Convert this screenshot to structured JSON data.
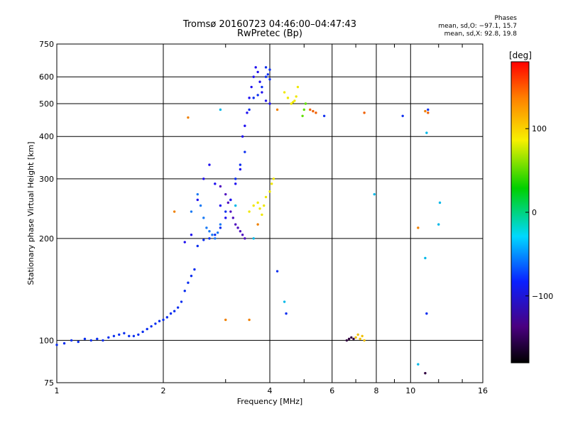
{
  "title_line1": "Tromsø 20160723 04:46:00–04:47:43",
  "title_line2": "RwPretec (Bp)",
  "phase_summary": {
    "heading": "Phases",
    "o_mode": "mean, sd,O: −97.1, 15.7",
    "x_mode": "mean, sd,X:  92.8, 19.8"
  },
  "colorbar": {
    "unit_label": "[deg]",
    "tick_labels": [
      "100",
      "0",
      "−100"
    ],
    "tick_values": [
      100,
      0,
      -100
    ],
    "range": [
      -180,
      180
    ]
  },
  "chart_data": {
    "type": "scatter",
    "xlabel": "Frequency [MHz]",
    "ylabel": "Stationary phase Virtual Height [km]",
    "xscale": "log",
    "yscale": "log",
    "xlim": [
      1,
      16
    ],
    "ylim": [
      75,
      750
    ],
    "x_ticks": [
      1,
      2,
      4,
      6,
      8,
      10,
      16
    ],
    "x_tick_labels": [
      "1",
      "2",
      "4",
      "6",
      "8",
      "10",
      "16"
    ],
    "y_ticks": [
      75,
      100,
      200,
      300,
      400,
      500,
      600,
      750
    ],
    "y_tick_labels": [
      "75",
      "100",
      "200",
      "300",
      "400",
      "500",
      "600",
      "750"
    ],
    "grid": true,
    "series": [
      {
        "phase_deg": -105,
        "color": "#0a2ef0",
        "x": [
          1.0,
          1.05,
          1.1,
          1.15,
          1.2,
          1.25,
          1.3,
          1.35,
          1.4,
          1.45,
          1.5,
          1.55,
          1.6,
          1.65,
          1.7,
          1.75,
          1.8,
          1.85,
          1.9,
          1.95,
          2.0,
          2.05,
          2.1,
          2.15,
          2.2,
          2.25,
          2.3,
          2.35,
          2.4,
          2.45,
          2.5,
          2.6,
          2.7,
          2.8,
          2.9,
          3.0,
          3.1,
          3.2,
          3.3,
          3.4,
          3.5,
          3.6,
          3.7,
          3.8,
          3.9,
          4.0
        ],
        "y": [
          97,
          98,
          100,
          99,
          101,
          100,
          101,
          100,
          102,
          103,
          104,
          105,
          103,
          103,
          104,
          106,
          108,
          110,
          112,
          114,
          115,
          117,
          120,
          122,
          125,
          130,
          140,
          148,
          155,
          162,
          190,
          198,
          200,
          205,
          215,
          240,
          260,
          300,
          330,
          360,
          480,
          520,
          530,
          560,
          600,
          630
        ]
      },
      {
        "phase_deg": -115,
        "color": "#1f10f0",
        "x": [
          2.3,
          2.4,
          2.5,
          2.6,
          2.7,
          2.8,
          2.9,
          3.0,
          3.1,
          3.2,
          3.3,
          3.35,
          3.4,
          3.45,
          3.5,
          3.55,
          3.6,
          3.65,
          3.7,
          3.75,
          3.8,
          3.9,
          4.0
        ],
        "y": [
          195,
          205,
          260,
          300,
          330,
          290,
          250,
          230,
          260,
          290,
          320,
          400,
          430,
          470,
          520,
          560,
          600,
          640,
          620,
          580,
          540,
          510,
          500
        ]
      },
      {
        "phase_deg": -85,
        "color": "#1a7af5",
        "x": [
          2.4,
          2.5,
          2.55,
          2.6,
          2.65,
          2.7,
          2.75,
          2.8,
          2.85,
          2.9
        ],
        "y": [
          240,
          270,
          250,
          230,
          215,
          210,
          205,
          200,
          208,
          220
        ]
      },
      {
        "phase_deg": -125,
        "color": "#5010c0",
        "x": [
          2.9,
          3.0,
          3.05,
          3.1,
          3.15,
          3.2,
          3.25,
          3.3,
          3.35,
          3.4
        ],
        "y": [
          285,
          270,
          255,
          240,
          230,
          220,
          215,
          210,
          205,
          200
        ]
      },
      {
        "phase_deg": 115,
        "color": "#f0e800",
        "x": [
          3.5,
          3.6,
          3.7,
          3.75,
          3.8,
          3.85,
          3.9,
          4.0,
          4.05,
          4.1,
          4.4,
          4.5,
          4.6,
          4.65,
          4.7,
          4.75,
          4.8
        ],
        "y": [
          240,
          250,
          255,
          245,
          235,
          250,
          265,
          275,
          290,
          300,
          540,
          520,
          500,
          505,
          510,
          525,
          560
        ]
      },
      {
        "phase_deg": 30,
        "color": "#60e000",
        "x": [
          4.95,
          5.0,
          5.05
        ],
        "y": [
          460,
          480,
          500
        ]
      },
      {
        "phase_deg": 160,
        "color": "#f06000",
        "x": [
          5.2,
          5.3,
          5.4,
          7.4,
          11.2
        ],
        "y": [
          480,
          475,
          470,
          470,
          470
        ]
      },
      {
        "phase_deg": -150,
        "color": "#300040",
        "x": [
          6.6,
          6.7,
          6.8,
          6.9,
          11.0
        ],
        "y": [
          100,
          101,
          102,
          101,
          80
        ]
      },
      {
        "phase_deg": 120,
        "color": "#f0c000",
        "x": [
          7.0,
          7.1,
          7.2,
          7.3,
          7.4
        ],
        "y": [
          102,
          104,
          101,
          103,
          100
        ]
      },
      {
        "phase_deg": -40,
        "color": "#00b8e8",
        "x": [
          2.9,
          3.2,
          3.6,
          4.4,
          7.9,
          12.0,
          12.1,
          11.0,
          11.1,
          10.5
        ],
        "y": [
          480,
          250,
          200,
          130,
          270,
          220,
          255,
          175,
          410,
          85
        ]
      },
      {
        "phase_deg": 150,
        "color": "#f08000",
        "x": [
          2.15,
          2.35,
          3.0,
          3.5,
          3.7,
          4.2,
          10.5,
          11.0
        ],
        "y": [
          240,
          455,
          115,
          115,
          220,
          480,
          215,
          475
        ]
      },
      {
        "phase_deg": -100,
        "color": "#1030f0",
        "x": [
          3.9,
          3.95,
          4.0,
          4.2,
          4.45,
          5.7,
          9.5,
          11.1,
          11.2
        ],
        "y": [
          640,
          610,
          590,
          160,
          120,
          460,
          460,
          120,
          480
        ]
      }
    ]
  }
}
